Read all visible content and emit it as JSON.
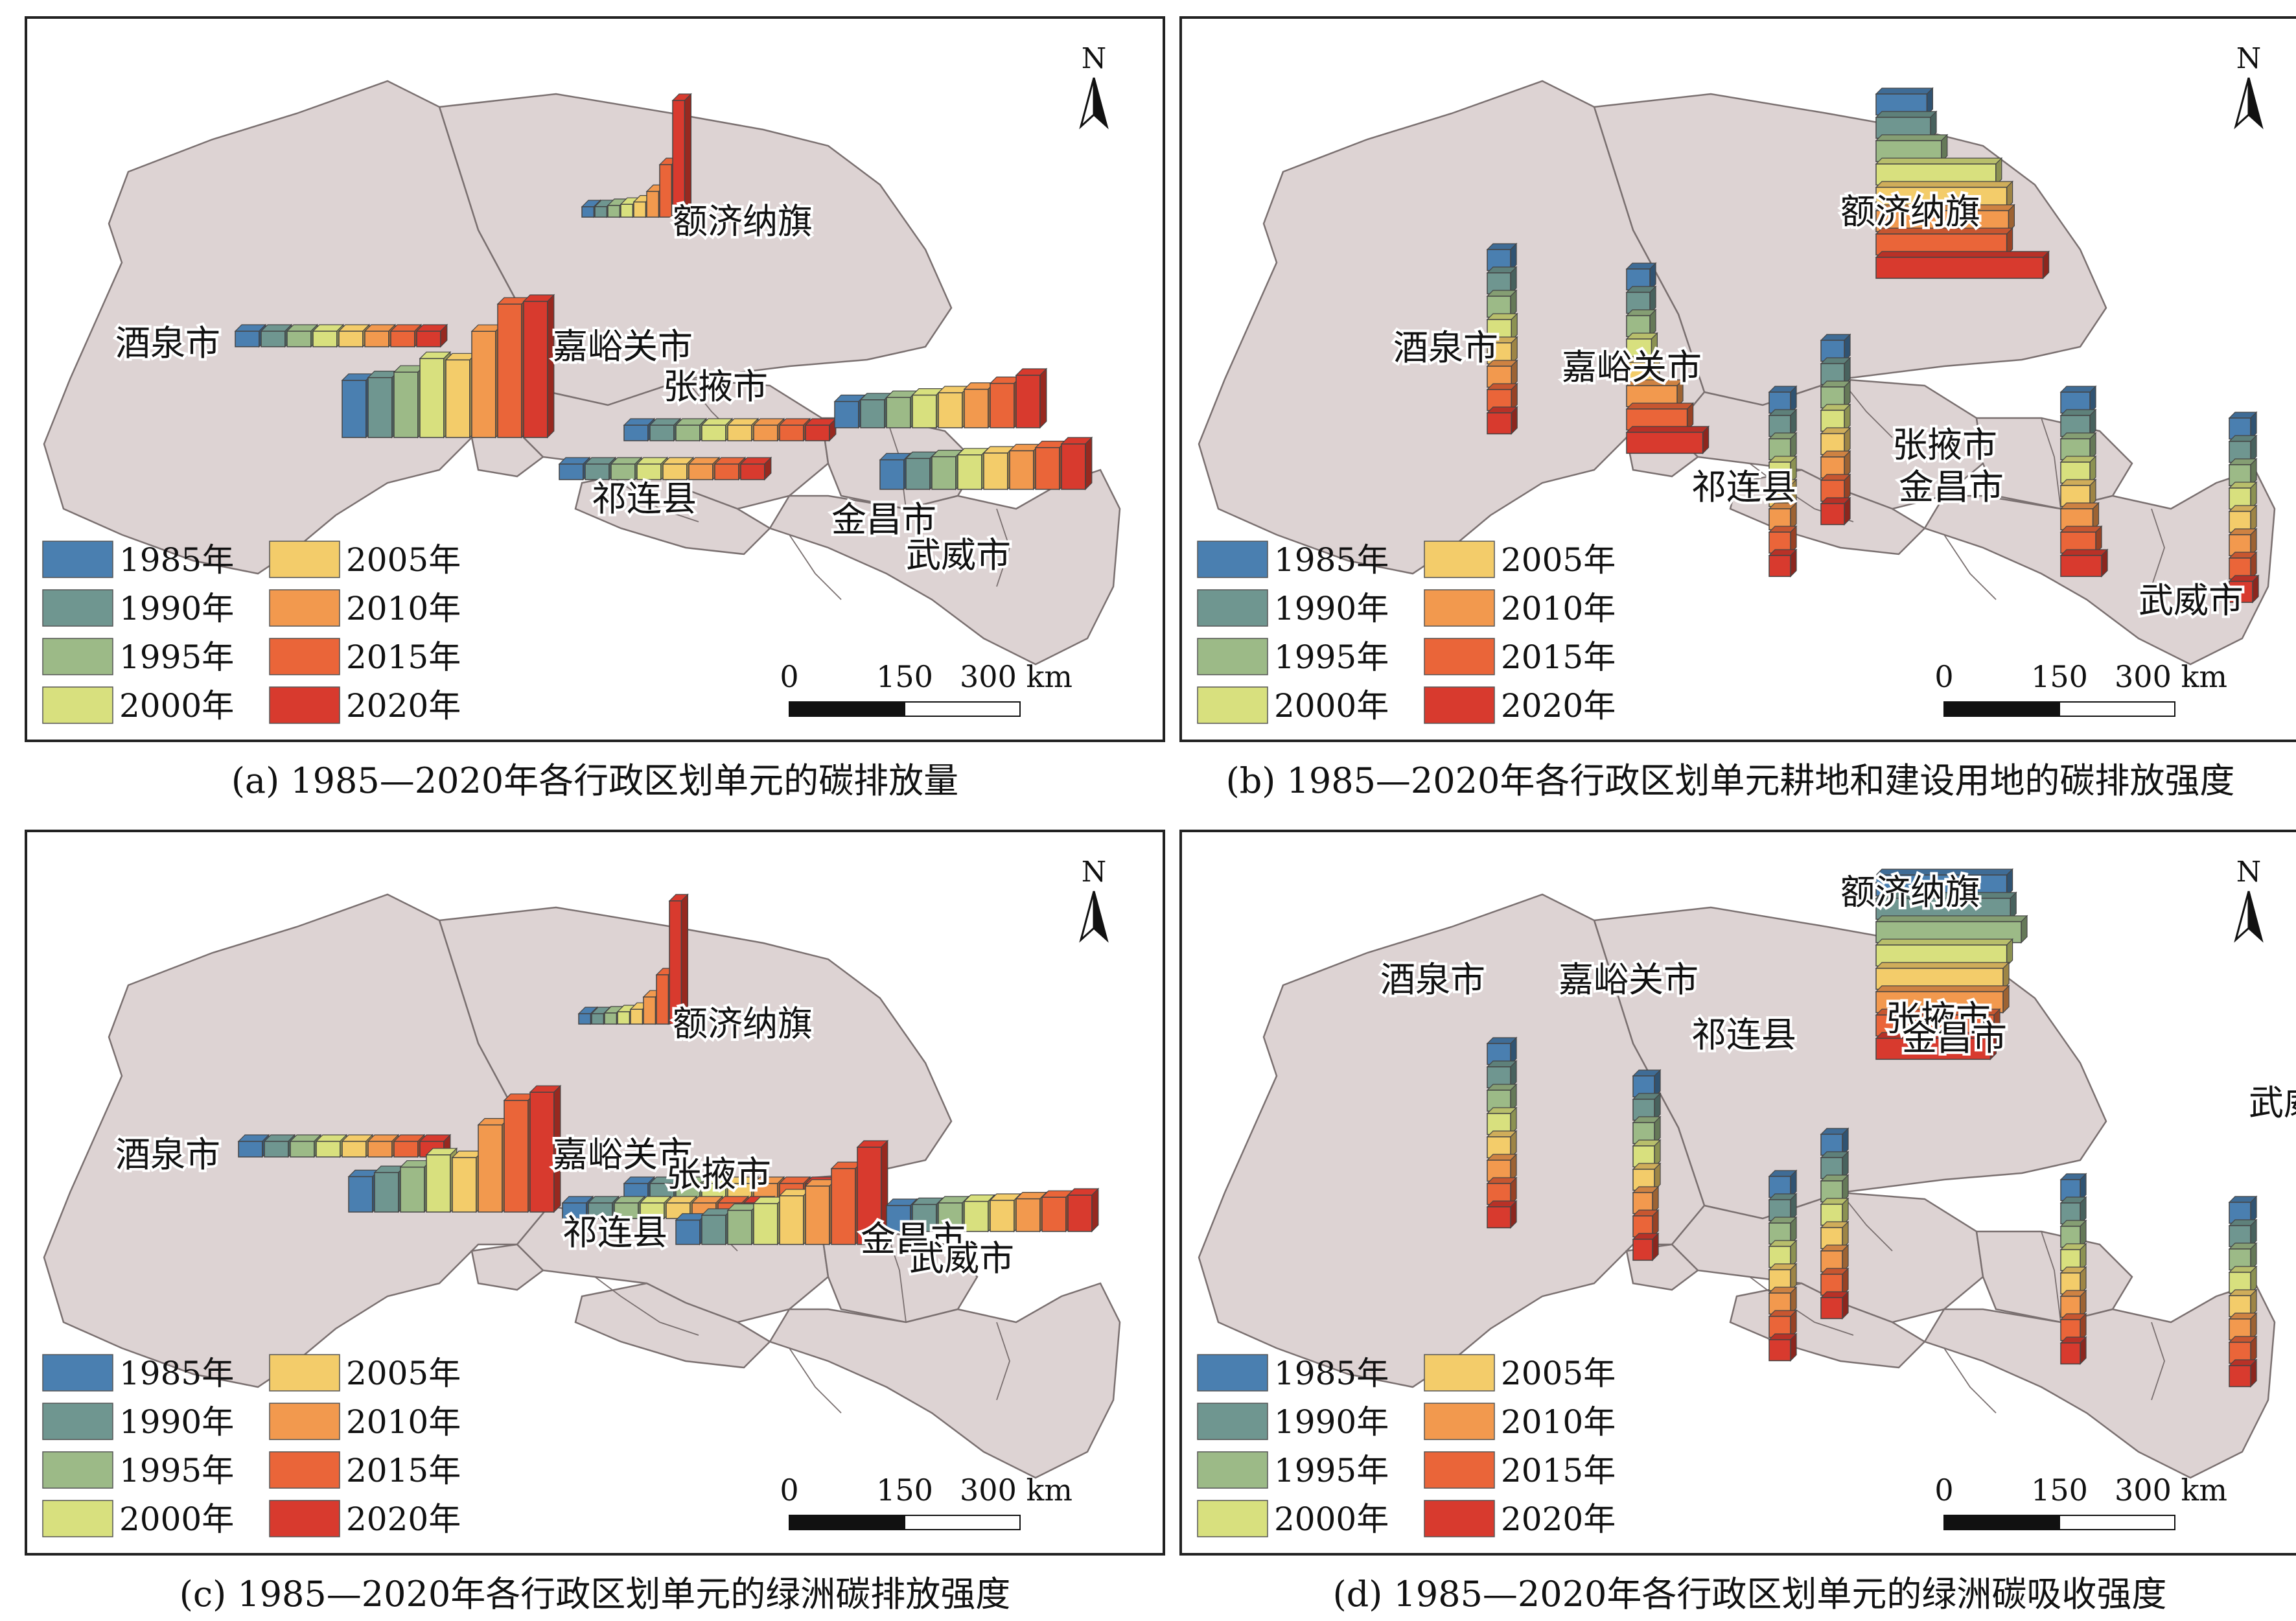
{
  "legend": {
    "items": [
      {
        "label": "1985年",
        "color": "#4a7fb0"
      },
      {
        "label": "1990年",
        "color": "#6f9690"
      },
      {
        "label": "1995年",
        "color": "#9cba87"
      },
      {
        "label": "2000年",
        "color": "#d8e07e"
      },
      {
        "label": "2005年",
        "color": "#f3cc6a"
      },
      {
        "label": "2010年",
        "color": "#f2994e"
      },
      {
        "label": "2015年",
        "color": "#ea6539"
      },
      {
        "label": "2020年",
        "color": "#d83a2e"
      }
    ]
  },
  "north_label": "N",
  "scale_bar": {
    "labels": [
      "0",
      "150",
      "300 km"
    ]
  },
  "regions": [
    "额济纳旗",
    "酒泉市",
    "嘉峪关市",
    "张掖市",
    "祁连县",
    "金昌市",
    "武威市"
  ],
  "panels": [
    {
      "caption": "(a) 1985—2020年各行政区划单元的碳排放量",
      "orientation": "vertical"
    },
    {
      "caption": "(b) 1985—2020年各行政区划单元耕地和建设用地的碳排放强度",
      "orientation": "horizontal"
    },
    {
      "caption": "(c) 1985—2020年各行政区划单元的绿洲碳排放强度",
      "orientation": "vertical"
    },
    {
      "caption": "(d) 1985—2020年各行政区划单元的绿洲碳吸收强度",
      "orientation": "horizontal"
    }
  ]
}
